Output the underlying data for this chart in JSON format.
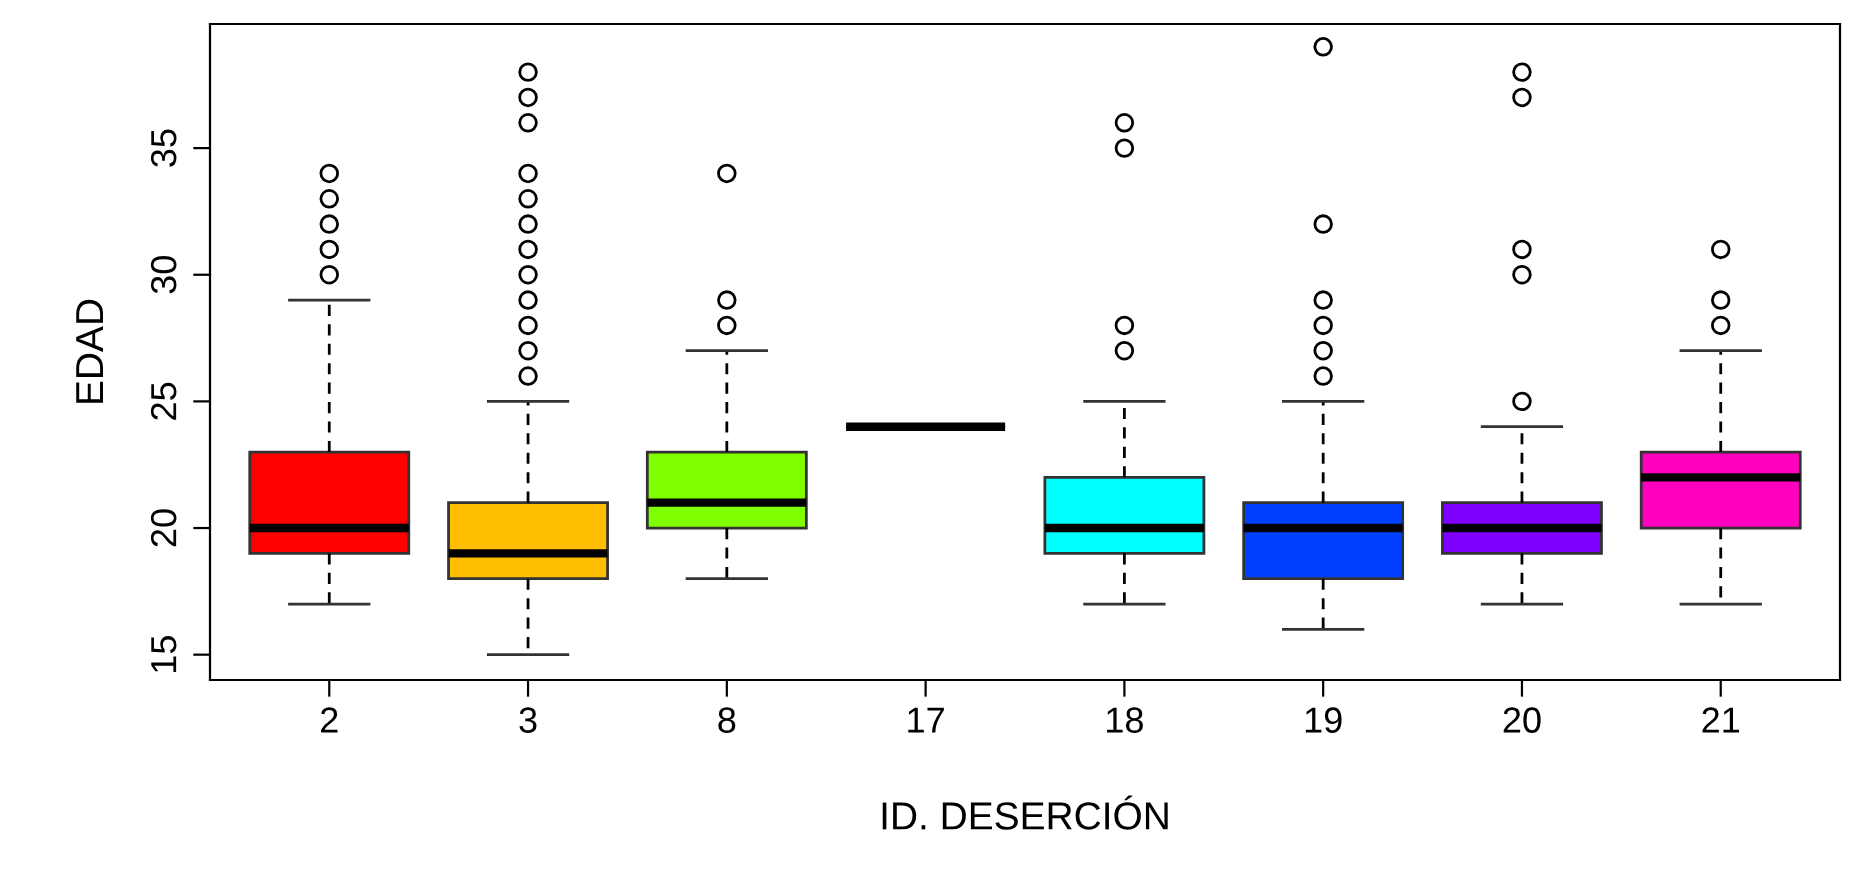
{
  "chart_data": {
    "type": "box",
    "xlabel": "ID. DESERCIÓN",
    "ylabel": "EDAD",
    "categories": [
      "2",
      "3",
      "8",
      "17",
      "18",
      "19",
      "20",
      "21"
    ],
    "ylim": [
      14,
      39.9
    ],
    "yticks": [
      15,
      20,
      25,
      30,
      35
    ],
    "grid": false,
    "marker": "circle",
    "colors": [
      "#ff0000",
      "#ffbf00",
      "#80ff00",
      "#333333",
      "#00ffff",
      "#0040ff",
      "#8000ff",
      "#ff00bf"
    ],
    "boxes": [
      {
        "low": 17,
        "q1": 19,
        "median": 20,
        "q3": 23,
        "high": 29,
        "outliers": [
          30,
          31,
          32,
          33,
          34
        ]
      },
      {
        "low": 15,
        "q1": 18,
        "median": 19,
        "q3": 21,
        "high": 25,
        "outliers": [
          26,
          27,
          28,
          29,
          30,
          31,
          32,
          33,
          34,
          36,
          37,
          38
        ]
      },
      {
        "low": 18,
        "q1": 20,
        "median": 21,
        "q3": 23,
        "high": 27,
        "outliers": [
          28,
          29,
          34
        ]
      },
      {
        "low": 24,
        "q1": 24,
        "median": 24,
        "q3": 24,
        "high": 24
      },
      {
        "low": 17,
        "q1": 19,
        "median": 20,
        "q3": 22,
        "high": 25,
        "outliers": [
          27,
          28,
          35,
          36
        ]
      },
      {
        "low": 16,
        "q1": 18,
        "median": 20,
        "q3": 21,
        "high": 25,
        "outliers": [
          26,
          27,
          28,
          29,
          32,
          39
        ]
      },
      {
        "low": 17,
        "q1": 19,
        "median": 20,
        "q3": 21,
        "high": 24,
        "outliers": [
          25,
          30,
          31,
          37,
          38
        ]
      },
      {
        "low": 17,
        "q1": 20,
        "median": 22,
        "q3": 23,
        "high": 27,
        "outliers": [
          28,
          29,
          31
        ]
      }
    ]
  }
}
